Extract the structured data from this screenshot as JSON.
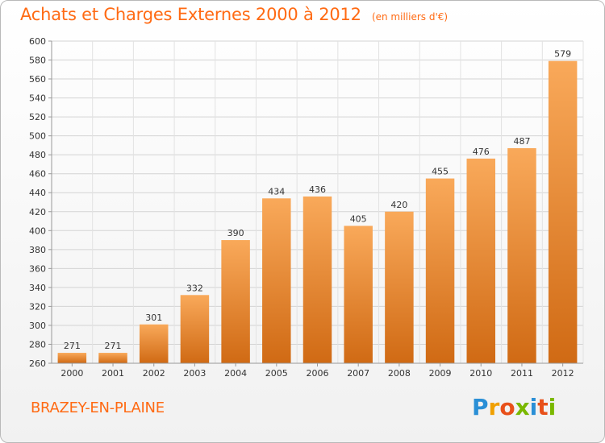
{
  "header": {
    "title": "Achats et Charges Externes 2000 à 2012",
    "unit": "(en milliers d'€)"
  },
  "footer": {
    "city": "BRAZEY-EN-PLAINE",
    "logo": "Proxiti"
  },
  "colors": {
    "accent": "#ff6a13",
    "bar_light": "#f9a95a",
    "bar_dark": "#d06a14"
  },
  "chart_data": {
    "type": "bar",
    "categories": [
      "2000",
      "2001",
      "2002",
      "2003",
      "2004",
      "2005",
      "2006",
      "2007",
      "2008",
      "2009",
      "2010",
      "2011",
      "2012"
    ],
    "values": [
      271,
      271,
      301,
      332,
      390,
      434,
      436,
      405,
      420,
      455,
      476,
      487,
      579
    ],
    "ylim": [
      260,
      600
    ],
    "yticks": [
      260,
      280,
      300,
      320,
      340,
      360,
      380,
      400,
      420,
      440,
      460,
      480,
      500,
      520,
      540,
      560,
      580,
      600
    ],
    "grid": true
  }
}
